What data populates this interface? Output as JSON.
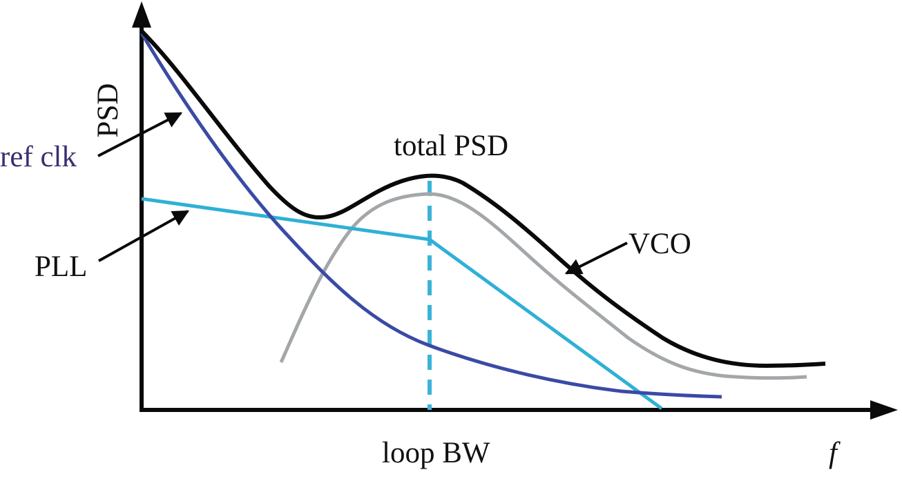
{
  "axes": {
    "y_label": "PSD",
    "x_label": "f",
    "bandwidth_label": "loop BW"
  },
  "curves": [
    {
      "id": "ref-clk",
      "label": "ref clk",
      "color": "#3a4aa5"
    },
    {
      "id": "pll",
      "label": "PLL",
      "color": "#2fb0d6"
    },
    {
      "id": "vco",
      "label": "VCO",
      "color": "#a3a7aa"
    },
    {
      "id": "total",
      "label": "total PSD",
      "color": "#0a0a0a"
    }
  ],
  "colors": {
    "axis": "#0a0a0a",
    "bw_marker": "#3cb3d8",
    "ref_clk_label": "#3b2f74"
  }
}
